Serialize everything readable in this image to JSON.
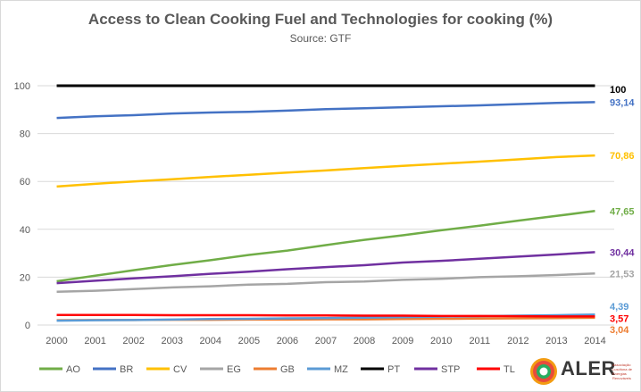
{
  "chart_data": {
    "type": "line",
    "title": "Access to Clean Cooking Fuel and Technologies for cooking (%)",
    "subtitle": "Source: GTF",
    "xlabel": "",
    "ylabel": "",
    "ylim": [
      0,
      100
    ],
    "yticks": [
      0,
      20,
      40,
      60,
      80,
      100
    ],
    "grid": true,
    "legend_position": "bottom",
    "x": [
      "2000",
      "2001",
      "2002",
      "2003",
      "2004",
      "2005",
      "2006",
      "2007",
      "2008",
      "2009",
      "2010",
      "2011",
      "2012",
      "2013",
      "2014"
    ],
    "series": [
      {
        "name": "AO",
        "color": "#70ad47",
        "end_label": "47,65",
        "values": [
          18.3,
          20.6,
          22.9,
          25.1,
          27.1,
          29.3,
          31.1,
          33.4,
          35.6,
          37.5,
          39.6,
          41.5,
          43.6,
          45.6,
          47.65
        ]
      },
      {
        "name": "BR",
        "color": "#4472c4",
        "end_label": "93,14",
        "values": [
          86.5,
          87.2,
          87.7,
          88.4,
          88.8,
          89.1,
          89.6,
          90.2,
          90.6,
          91.0,
          91.4,
          91.8,
          92.3,
          92.8,
          93.14
        ]
      },
      {
        "name": "CV",
        "color": "#ffc000",
        "end_label": "70,86",
        "values": [
          57.9,
          59.0,
          60.0,
          60.9,
          61.9,
          62.8,
          63.7,
          64.6,
          65.6,
          66.5,
          67.4,
          68.3,
          69.2,
          70.2,
          70.86
        ]
      },
      {
        "name": "EG",
        "color": "#a5a5a5",
        "end_label": "21,53",
        "values": [
          13.9,
          14.3,
          15.0,
          15.7,
          16.2,
          16.9,
          17.2,
          17.9,
          18.2,
          18.9,
          19.3,
          20.0,
          20.4,
          20.9,
          21.53
        ]
      },
      {
        "name": "GB",
        "color": "#ed7d31",
        "end_label": "3,04",
        "values": [
          2.0,
          2.1,
          2.1,
          2.2,
          2.2,
          2.3,
          2.3,
          2.4,
          2.4,
          2.5,
          2.6,
          2.7,
          2.8,
          2.9,
          3.04
        ]
      },
      {
        "name": "MZ",
        "color": "#5b9bd5",
        "end_label": "4,39",
        "values": [
          1.8,
          2.0,
          2.1,
          2.3,
          2.5,
          2.6,
          2.8,
          2.9,
          3.1,
          3.3,
          3.5,
          3.7,
          3.9,
          4.1,
          4.39
        ]
      },
      {
        "name": "PT",
        "color": "#000000",
        "end_label": "100",
        "values": [
          100,
          100,
          100,
          100,
          100,
          100,
          100,
          100,
          100,
          100,
          100,
          100,
          100,
          100,
          100
        ]
      },
      {
        "name": "STP",
        "color": "#7030a0",
        "end_label": "30,44",
        "values": [
          17.5,
          18.5,
          19.5,
          20.4,
          21.4,
          22.3,
          23.3,
          24.2,
          25.0,
          26.1,
          26.8,
          27.7,
          28.6,
          29.5,
          30.44
        ]
      },
      {
        "name": "TL",
        "color": "#ff0000",
        "end_label": "3,57",
        "values": [
          4.2,
          4.2,
          4.2,
          4.1,
          4.1,
          4.1,
          4.0,
          4.0,
          3.9,
          3.9,
          3.8,
          3.8,
          3.7,
          3.6,
          3.57
        ]
      }
    ]
  },
  "logo": {
    "text": "ALER",
    "tagline": "Associação Lusófona de Energias Renováveis"
  }
}
